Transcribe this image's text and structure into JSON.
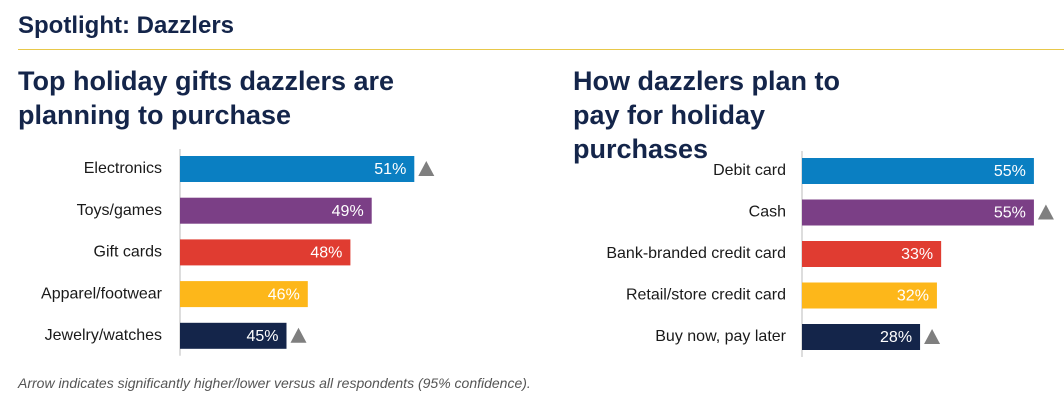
{
  "title": "Spotlight: Dazzlers",
  "footnote": "Arrow indicates significantly higher/lower versus all respondents (95% confidence).",
  "chart_data": [
    {
      "type": "bar",
      "orientation": "horizontal",
      "title": "Top holiday gifts dazzlers are planning to purchase",
      "categories": [
        "Electronics",
        "Toys/games",
        "Gift cards",
        "Apparel/footwear",
        "Jewelry/watches"
      ],
      "values": [
        51,
        49,
        48,
        46,
        45
      ],
      "value_labels": [
        "51%",
        "49%",
        "48%",
        "46%",
        "45%"
      ],
      "colors": [
        "#0a7fc2",
        "#7b3f86",
        "#e03c31",
        "#fdb71a",
        "#14254a"
      ],
      "significant_up": [
        true,
        false,
        false,
        false,
        true
      ],
      "xlim": [
        40,
        60
      ]
    },
    {
      "type": "bar",
      "orientation": "horizontal",
      "title": "How dazzlers plan to pay for holiday purchases",
      "categories": [
        "Debit card",
        "Cash",
        "Bank-branded credit card",
        "Retail/store credit card",
        "Buy now, pay later"
      ],
      "values": [
        55,
        55,
        33,
        32,
        28
      ],
      "value_labels": [
        "55%",
        "55%",
        "33%",
        "32%",
        "28%"
      ],
      "colors": [
        "#0a7fc2",
        "#7b3f86",
        "#e03c31",
        "#fdb71a",
        "#14254a"
      ],
      "significant_up": [
        false,
        true,
        false,
        false,
        true
      ],
      "xlim": [
        0,
        60
      ]
    }
  ]
}
